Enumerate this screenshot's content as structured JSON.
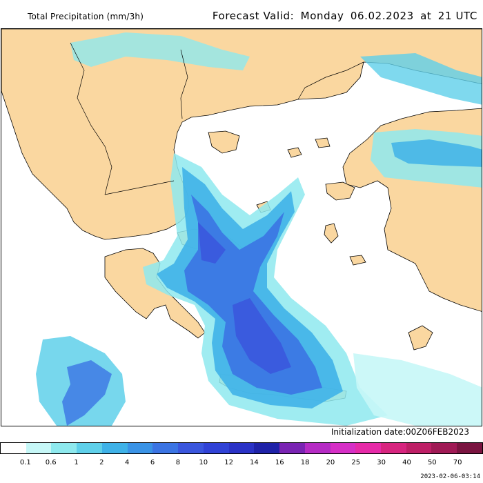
{
  "header": {
    "title": "Total Precipitation (mm/3h)",
    "forecast_label": "Forecast Valid:",
    "forecast_day": "Monday",
    "forecast_date": "06.02.2023",
    "forecast_at": "at",
    "forecast_time": "21 UTC"
  },
  "init_label": "Initialization date:00Z06FEB2023",
  "timestamp": "2023-02-06-03:14",
  "legend": {
    "swatch_colors": [
      "#ffffff",
      "#c6f7f7",
      "#8ee9ee",
      "#5fd0ea",
      "#3fb2e8",
      "#3a93e6",
      "#3b74e3",
      "#3a56dd",
      "#3042d6",
      "#2a32c6",
      "#1f22a8",
      "#7a24b3",
      "#b52bc4",
      "#d62fc6",
      "#e62aa8",
      "#d7257f",
      "#be1f66",
      "#a01a55",
      "#7a1440"
    ],
    "labels": [
      "0.1",
      "0.6",
      "1",
      "2",
      "4",
      "6",
      "8",
      "10",
      "12",
      "14",
      "16",
      "18",
      "20",
      "25",
      "30",
      "40",
      "50",
      "70"
    ]
  },
  "map": {
    "land_color": "#fad7a0",
    "sea_color": "#ffffff",
    "precip_colors": [
      "#c6f7f7",
      "#8ee9ee",
      "#5fd0ea",
      "#3fb2e8",
      "#3a93e6",
      "#3b74e3",
      "#3a56dd",
      "#3042d6"
    ]
  }
}
